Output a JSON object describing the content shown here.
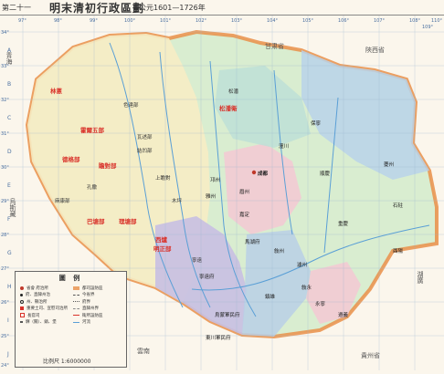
{
  "header": {
    "chapter": "第二十一",
    "title": "明末清初行政區劃",
    "period": "公元1601—1726年"
  },
  "map": {
    "longitudes": [
      "97°",
      "98°",
      "99°",
      "100°",
      "101°",
      "102°",
      "103°",
      "104°",
      "105°",
      "106°",
      "107°",
      "108°",
      "109°",
      "110°"
    ],
    "latitudes": [
      "34°",
      "33°",
      "32°",
      "31°",
      "30°",
      "29°",
      "28°",
      "27°",
      "26°",
      "25°",
      "24°"
    ],
    "row_letters": [
      "A",
      "B",
      "C",
      "D",
      "E",
      "F",
      "G",
      "H",
      "I",
      "J"
    ],
    "regions": {
      "qinghai": "青海",
      "gansu": "甘肃省",
      "shaanxi": "陝西省",
      "guizhou": "貴州省",
      "tibet": "烏斯藏",
      "yunnan": "雲南",
      "huguang": "湖廣"
    },
    "tribes_red": [
      "林蔥",
      "霍爾五部",
      "德格部",
      "瞻對部",
      "巴塘部",
      "理塘部",
      "西爐",
      "明正部",
      "松潘衛"
    ],
    "tribes_black": [
      "色達部",
      "瓦述部",
      "上瞻對",
      "孔撒",
      "木坪",
      "結凹部",
      "麻康部",
      "寧遠",
      "松潘"
    ],
    "cities": [
      "成都",
      "重慶",
      "遵義",
      "敍州",
      "瀘州",
      "保寧",
      "順慶",
      "夔州",
      "潼川",
      "嘉定",
      "雅州",
      "邛州",
      "眉州",
      "寧遠府",
      "烏蒙軍民府",
      "東川軍民府",
      "馬湖府",
      "鎮雄",
      "敍永",
      "石砫",
      "酉陽",
      "永寧"
    ],
    "colors": {
      "frame_bg": "#fbf6ec",
      "sichuan_green": "#d9edd0",
      "west_yellow": "#f6ecc4",
      "purple": "#c8bfe2",
      "pink": "#f3c8d3",
      "blue": "#b9d2ea",
      "teal": "#bfe0d6",
      "border_orange": "#e98f49",
      "tribe_red": "#d9322a",
      "river": "#5a9fd6"
    }
  },
  "legend": {
    "title": "圖 例",
    "left_items": [
      "省會 府治所",
      "府、直隸州治",
      "州、縣治所",
      "重要土司、宣慰司治所",
      "長官司",
      "驛（關）、鎮、堡"
    ],
    "right_items": [
      "都司設防區",
      "今省界",
      "府界",
      "直隸州界",
      "衛所設防區",
      "河流"
    ],
    "scale": "比例尺 1:6000000"
  }
}
